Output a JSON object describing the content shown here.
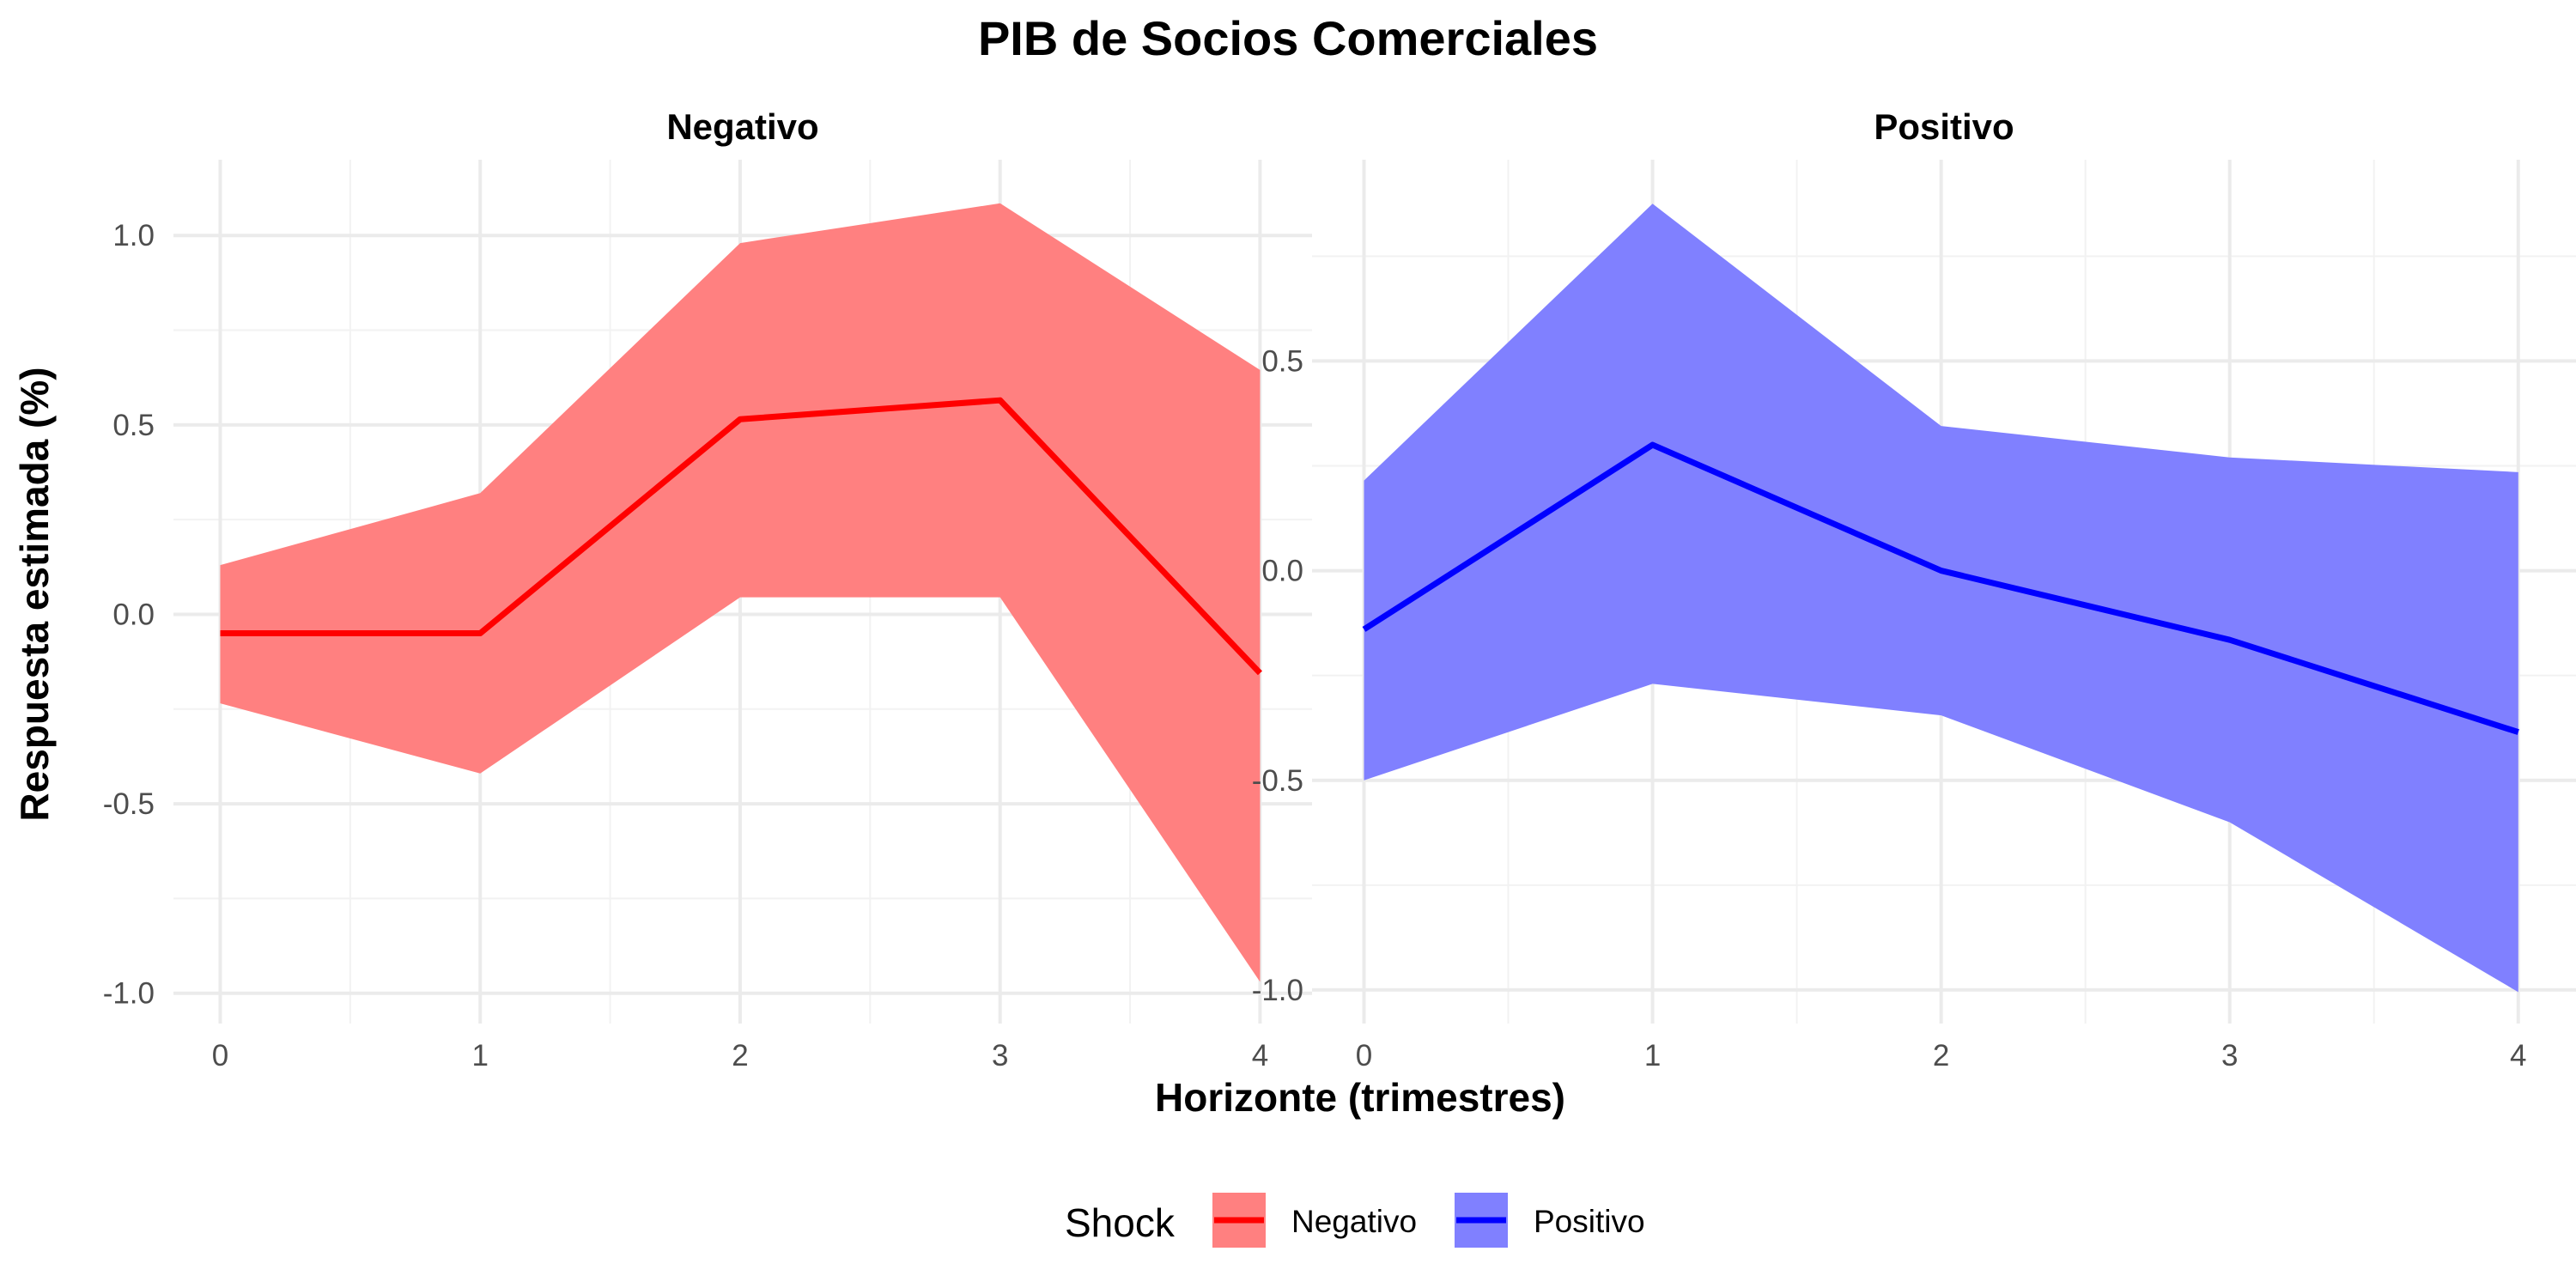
{
  "chart_data": {
    "type": "line",
    "title": "PIB de Socios Comerciales",
    "xlabel": "Horizonte (trimestres)",
    "ylabel": "Respuesta estimada (%)",
    "grid": true,
    "legend": {
      "position": "bottom",
      "title": "Shock",
      "entries": [
        {
          "label": "Negativo",
          "line_color": "#ff0000",
          "fill_color": "#ff8080"
        },
        {
          "label": "Positivo",
          "line_color": "#0000ff",
          "fill_color": "#8080ff"
        }
      ]
    },
    "panels": [
      {
        "title": "Negativo",
        "line_color": "#ff0000",
        "fill_color": "#ff8080",
        "x": [
          0,
          1,
          2,
          3,
          4
        ],
        "y": [
          -0.05,
          -0.05,
          0.515,
          0.565,
          -0.155
        ],
        "lower": [
          -0.235,
          -0.42,
          0.045,
          0.045,
          -0.97
        ],
        "upper": [
          0.13,
          0.32,
          0.98,
          1.085,
          0.645
        ],
        "xlim": [
          -0.18,
          4.2
        ],
        "ylim": [
          -1.08,
          1.2
        ],
        "xticks": [
          0,
          1,
          2,
          3,
          4
        ],
        "xtick_labels": [
          "0",
          "1",
          "2",
          "3",
          "4"
        ],
        "yticks": [
          -1.0,
          -0.5,
          0.0,
          0.5,
          1.0
        ],
        "ytick_labels": [
          "-1.0",
          "-0.5",
          "0.0",
          "0.5",
          "1.0"
        ]
      },
      {
        "title": "Positivo",
        "line_color": "#0000ff",
        "fill_color": "#8080ff",
        "x": [
          0,
          1,
          2,
          3,
          4
        ],
        "y": [
          -0.14,
          0.3,
          0.0,
          -0.165,
          -0.385
        ],
        "lower": [
          -0.5,
          -0.27,
          -0.345,
          -0.6,
          -1.005
        ],
        "upper": [
          0.215,
          0.875,
          0.345,
          0.27,
          0.235
        ],
        "xlim": [
          -0.18,
          4.2
        ],
        "ylim": [
          -1.08,
          0.98
        ],
        "xticks": [
          0,
          1,
          2,
          3,
          4
        ],
        "xtick_labels": [
          "0",
          "1",
          "2",
          "3",
          "4"
        ],
        "yticks": [
          -1.0,
          -0.5,
          0.0,
          0.5
        ],
        "ytick_labels": [
          "-1.0",
          "-0.5",
          "0.0",
          "0.5"
        ]
      }
    ]
  }
}
